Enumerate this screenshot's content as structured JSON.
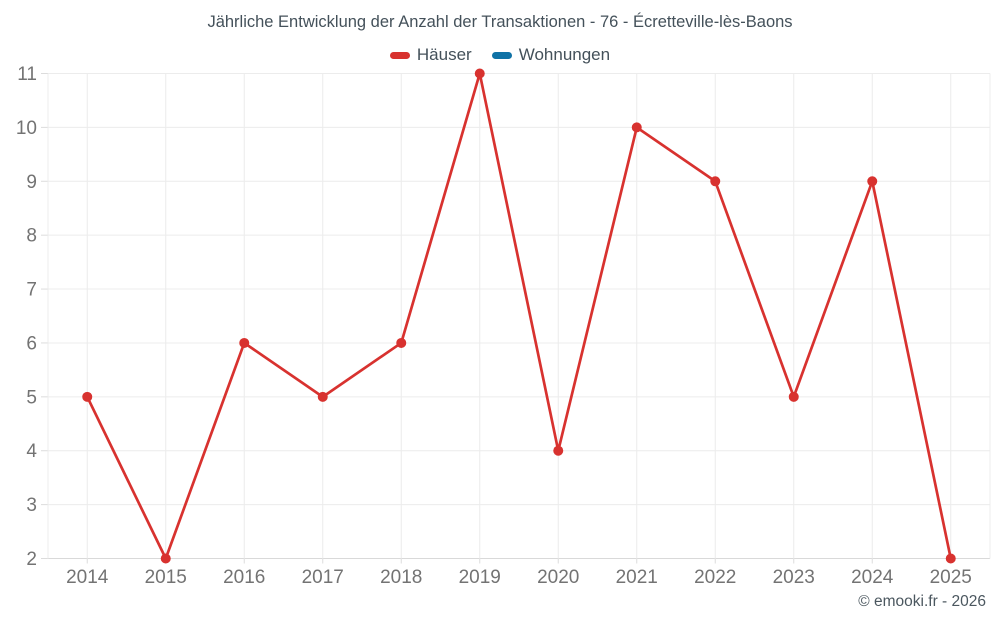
{
  "footer": {
    "copyright": "© emooki.fr - 2026"
  },
  "chart_data": {
    "type": "line",
    "title": "Jährliche Entwicklung der Anzahl der Transaktionen - 76 - Écretteville-lès-Baons",
    "categories": [
      "2014",
      "2015",
      "2016",
      "2017",
      "2018",
      "2019",
      "2020",
      "2021",
      "2022",
      "2023",
      "2024",
      "2025"
    ],
    "series": [
      {
        "name": "Häuser",
        "color": "#d8322f",
        "values": [
          5,
          2,
          6,
          5,
          6,
          11,
          4,
          10,
          9,
          5,
          9,
          2
        ]
      },
      {
        "name": "Wohnungen",
        "color": "#0f72a6",
        "values": []
      }
    ],
    "xlabel": "",
    "ylabel": "",
    "ylim": [
      2,
      11
    ],
    "y_ticks": [
      2,
      3,
      4,
      5,
      6,
      7,
      8,
      9,
      10,
      11
    ],
    "grid": true,
    "legend_position": "top",
    "tick_label_color": "#737373",
    "grid_color": "#ececec",
    "axis_line_color": "#d9d9d9",
    "tick_mark_color": "#dcdcdc"
  }
}
